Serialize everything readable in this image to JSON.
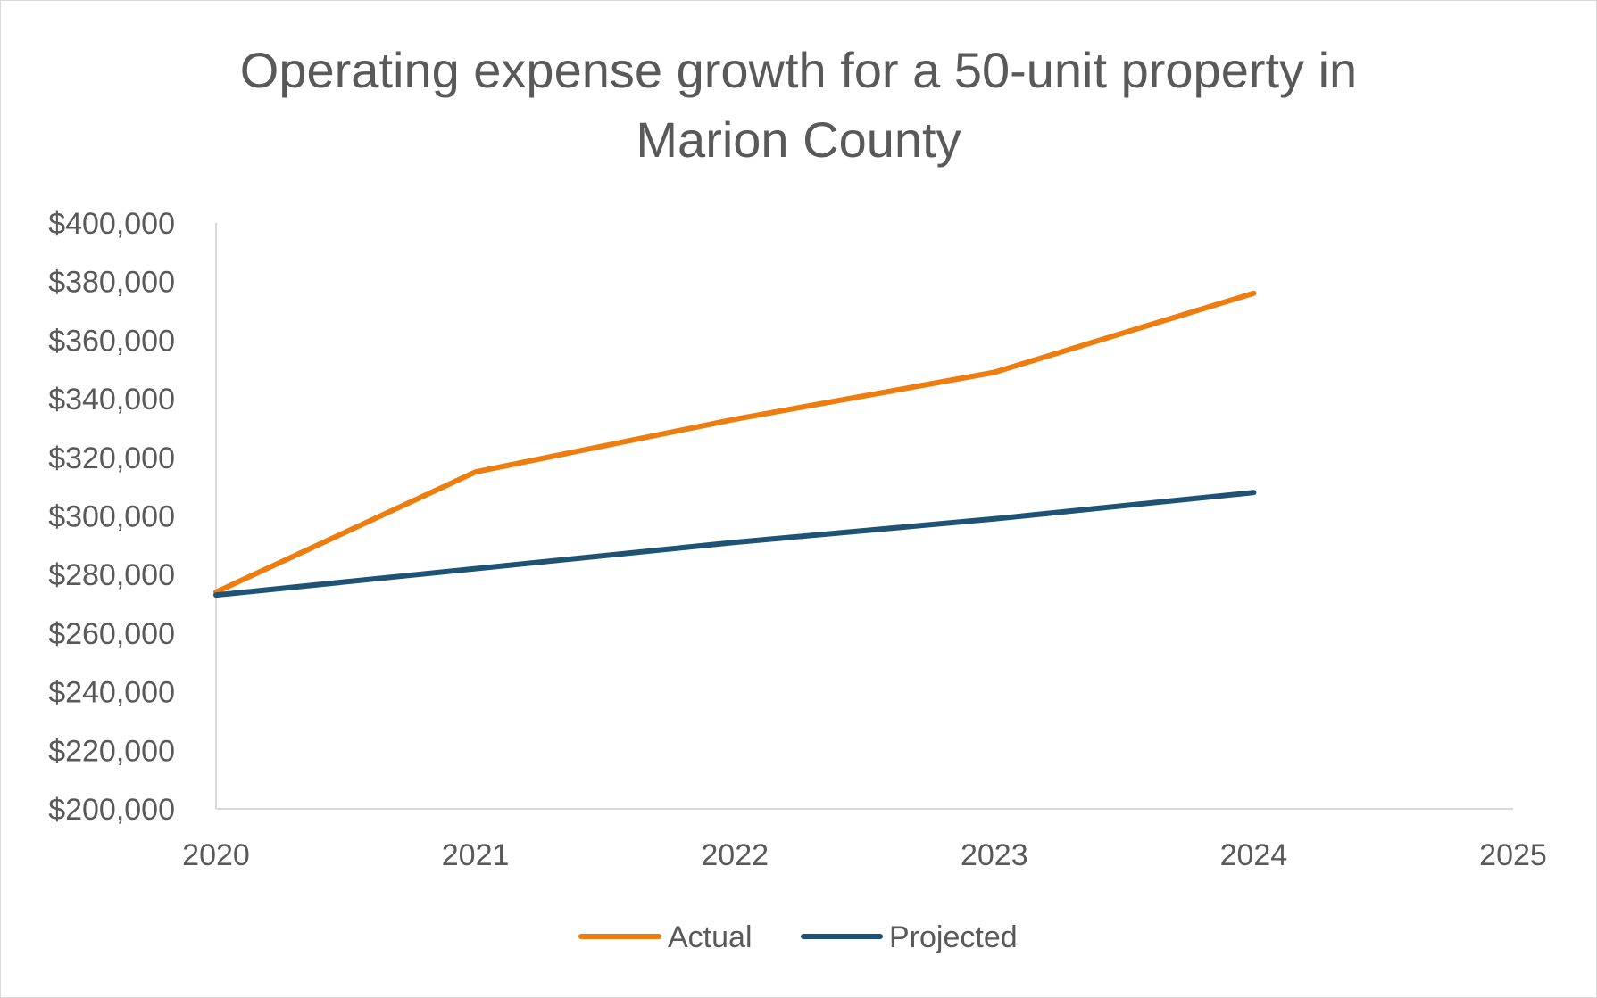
{
  "chart_data": {
    "type": "line",
    "title_lines": [
      "Operating expense growth for a 50-unit property in",
      "Marion County"
    ],
    "title": "Operating expense growth for a 50-unit property in Marion County",
    "xlabel": "",
    "ylabel": "",
    "x": [
      2020,
      2021,
      2022,
      2023,
      2024
    ],
    "x_ticks": [
      "2020",
      "2021",
      "2022",
      "2023",
      "2024",
      "2025"
    ],
    "xlim": [
      2020,
      2025
    ],
    "ylim": [
      200000,
      400000
    ],
    "y_ticks": [
      200000,
      220000,
      240000,
      260000,
      280000,
      300000,
      320000,
      340000,
      360000,
      380000,
      400000
    ],
    "y_tick_labels": [
      "$200,000",
      "$220,000",
      "$240,000",
      "$260,000",
      "$280,000",
      "$300,000",
      "$320,000",
      "$340,000",
      "$360,000",
      "$380,000",
      "$400,000"
    ],
    "grid": false,
    "legend_position": "bottom",
    "series": [
      {
        "name": "Actual",
        "color": "#ED7D0F",
        "values": [
          274000,
          315000,
          333000,
          349000,
          376000
        ]
      },
      {
        "name": "Projected",
        "color": "#1F5375",
        "values": [
          273000,
          282000,
          291000,
          299000,
          308000
        ]
      }
    ]
  }
}
